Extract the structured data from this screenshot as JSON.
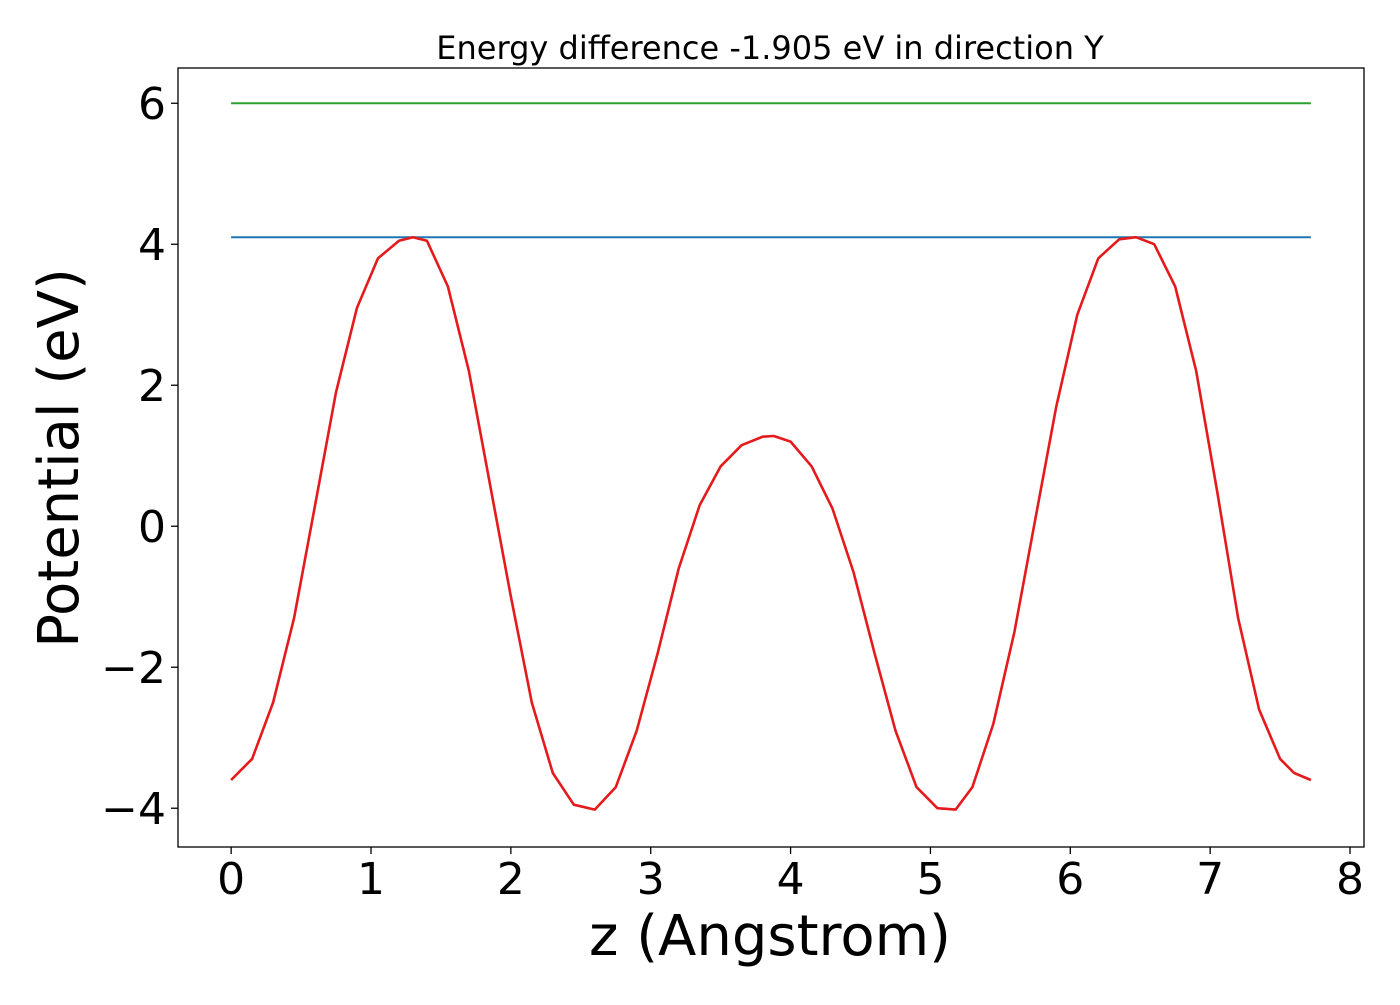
{
  "chart_data": {
    "type": "line",
    "title": "Energy difference -1.905 eV in direction Y",
    "xlabel": "z (Angstrom)",
    "ylabel": "Potential (eV)",
    "xlim": [
      -0.38,
      8.1
    ],
    "ylim": [
      -4.55,
      6.5
    ],
    "xticks": [
      0,
      1,
      2,
      3,
      4,
      5,
      6,
      7,
      8
    ],
    "yticks": [
      -4,
      -2,
      0,
      2,
      4,
      6
    ],
    "xtick_labels": [
      "0",
      "1",
      "2",
      "3",
      "4",
      "5",
      "6",
      "7",
      "8"
    ],
    "ytick_labels": [
      "−4",
      "−2",
      "0",
      "2",
      "4",
      "6"
    ],
    "grid": false,
    "legend": "none",
    "series": [
      {
        "color": "#2ca02c",
        "x": [
          0,
          7.72
        ],
        "y": [
          6.0,
          6.0
        ]
      },
      {
        "color": "#1f77b4",
        "x": [
          0,
          7.72
        ],
        "y": [
          4.1,
          4.1
        ]
      },
      {
        "color": "#e41a1c",
        "x": [
          0.0,
          0.15,
          0.3,
          0.45,
          0.6,
          0.75,
          0.9,
          1.05,
          1.2,
          1.3,
          1.4,
          1.55,
          1.7,
          1.85,
          2.0,
          2.15,
          2.3,
          2.45,
          2.6,
          2.75,
          2.9,
          3.05,
          3.2,
          3.35,
          3.5,
          3.65,
          3.8,
          3.88,
          4.0,
          4.15,
          4.3,
          4.45,
          4.6,
          4.75,
          4.9,
          5.05,
          5.18,
          5.3,
          5.45,
          5.6,
          5.75,
          5.9,
          6.05,
          6.2,
          6.35,
          6.47,
          6.6,
          6.75,
          6.9,
          7.05,
          7.2,
          7.35,
          7.5,
          7.6,
          7.72
        ],
        "y": [
          -3.6,
          -3.3,
          -2.5,
          -1.3,
          0.3,
          1.9,
          3.1,
          3.8,
          4.05,
          4.1,
          4.05,
          3.4,
          2.2,
          0.6,
          -1.0,
          -2.5,
          -3.5,
          -3.95,
          -4.02,
          -3.7,
          -2.9,
          -1.8,
          -0.6,
          0.3,
          0.85,
          1.15,
          1.27,
          1.28,
          1.2,
          0.85,
          0.25,
          -0.65,
          -1.8,
          -2.9,
          -3.7,
          -4.0,
          -4.02,
          -3.7,
          -2.8,
          -1.5,
          0.1,
          1.7,
          3.0,
          3.8,
          4.07,
          4.1,
          4.0,
          3.4,
          2.2,
          0.5,
          -1.3,
          -2.6,
          -3.3,
          -3.5,
          -3.6
        ]
      }
    ]
  }
}
